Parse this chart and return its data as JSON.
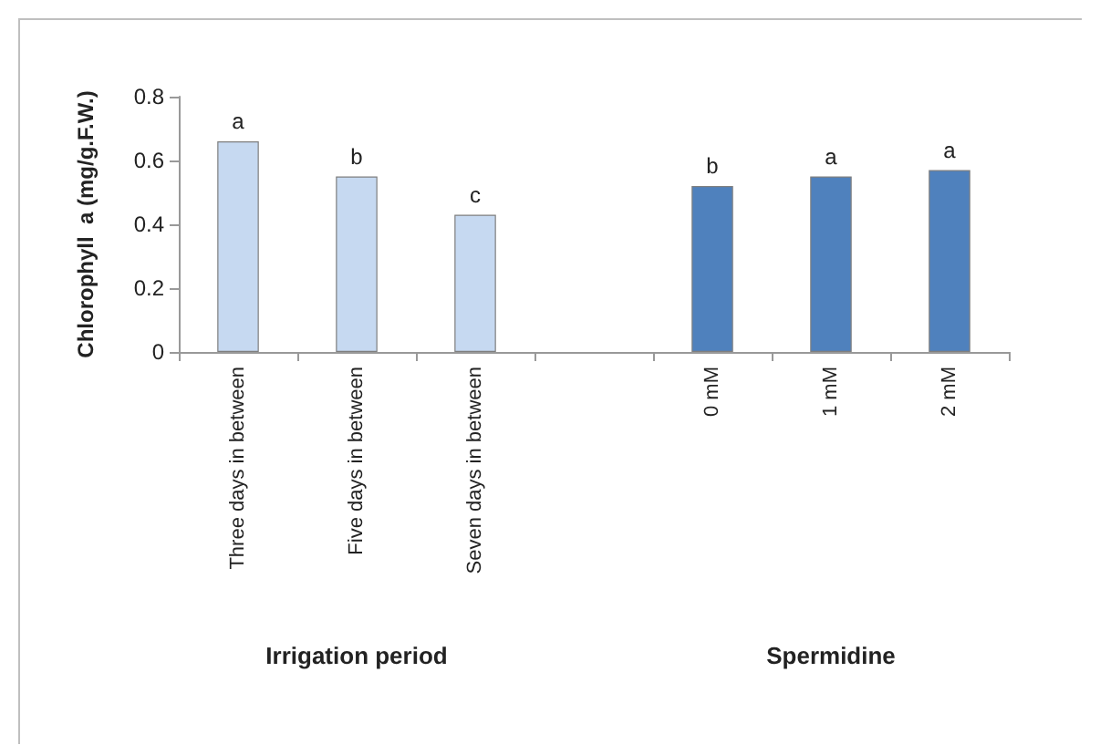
{
  "chart_data": {
    "type": "bar",
    "ylabel": "Chlorophyll  a (mg/g.F.W.)",
    "categories": [
      "Three days in between",
      "Five days in between",
      "Seven days in between",
      null,
      "0 mM",
      "1 mM",
      "2 mM"
    ],
    "values": [
      0.66,
      0.55,
      0.43,
      null,
      0.52,
      0.55,
      0.57
    ],
    "colors": [
      "#c6d9f1",
      "#c6d9f1",
      "#c6d9f1",
      "#c6d9f1",
      "#4f81bd",
      "#4f81bd",
      "#4f81bd"
    ],
    "value_labels": [
      "a",
      "b",
      "c",
      null,
      "b",
      "a",
      "a"
    ],
    "annotations": [
      "Irrigation period",
      "Spermidine"
    ],
    "ylim": [
      0,
      0.8
    ],
    "yticks": [
      0,
      0.2,
      0.4,
      0.6,
      0.8
    ],
    "grid": false
  }
}
